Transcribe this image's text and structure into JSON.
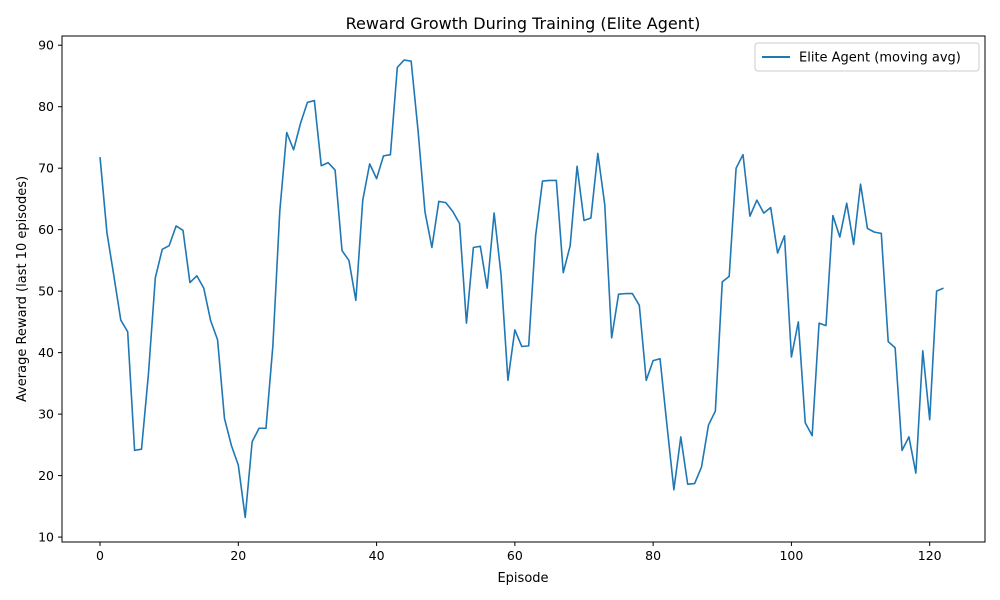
{
  "chart_data": {
    "type": "line",
    "title": "Reward Growth During Training (Elite Agent)",
    "xlabel": "Episode",
    "ylabel": "Average Reward (last 10 episodes)",
    "xlim": [
      -5.5,
      128
    ],
    "ylim": [
      9.2,
      91.5
    ],
    "xticks": [
      0,
      20,
      40,
      60,
      80,
      100,
      120
    ],
    "yticks": [
      10,
      20,
      30,
      40,
      50,
      60,
      70,
      80,
      90
    ],
    "grid": false,
    "legend_position": "top-right",
    "series": [
      {
        "name": "Elite Agent (moving avg)",
        "color": "#1f77b4",
        "x": [
          0,
          1,
          2,
          3,
          4,
          5,
          6,
          7,
          8,
          9,
          10,
          11,
          12,
          13,
          14,
          15,
          16,
          17,
          18,
          19,
          20,
          21,
          22,
          23,
          24,
          25,
          26,
          27,
          28,
          29,
          30,
          31,
          32,
          33,
          34,
          35,
          36,
          37,
          38,
          39,
          40,
          41,
          42,
          43,
          44,
          45,
          46,
          47,
          48,
          49,
          50,
          51,
          52,
          53,
          54,
          55,
          56,
          57,
          58,
          59,
          60,
          61,
          62,
          63,
          64,
          65,
          66,
          67,
          68,
          69,
          70,
          71,
          72,
          73,
          74,
          75,
          76,
          77,
          78,
          79,
          80,
          81,
          82,
          83,
          84,
          85,
          86,
          87,
          88,
          89,
          90,
          91,
          92,
          93,
          94,
          95,
          96,
          97,
          98,
          99,
          100,
          101,
          102,
          103,
          104,
          105,
          106,
          107,
          108,
          109,
          110,
          111,
          112,
          113,
          114,
          115,
          116,
          117,
          118,
          119,
          120,
          121,
          122
        ],
        "values": [
          71.8,
          59.5,
          52.5,
          45.3,
          43.4,
          24.1,
          24.3,
          36.5,
          52.2,
          56.8,
          57.4,
          60.6,
          59.9,
          51.4,
          52.5,
          50.5,
          45.2,
          42.1,
          29.3,
          24.9,
          21.7,
          13.2,
          25.5,
          27.7,
          27.7,
          41.1,
          63.0,
          75.8,
          73.0,
          77.3,
          80.7,
          81.0,
          70.4,
          70.9,
          69.7,
          56.6,
          55.0,
          48.5,
          64.8,
          70.7,
          68.3,
          72.0,
          72.2,
          86.4,
          87.6,
          87.4,
          76.1,
          62.9,
          57.1,
          64.6,
          64.4,
          63.0,
          61.0,
          44.8,
          57.1,
          57.3,
          50.5,
          62.7,
          52.7,
          35.5,
          43.7,
          41.0,
          41.1,
          59.0,
          67.9,
          68.0,
          68.0,
          53.0,
          57.4,
          70.3,
          61.5,
          61.9,
          72.4,
          64.1,
          42.4,
          49.5,
          49.6,
          49.6,
          47.7,
          35.5,
          38.7,
          39.0,
          28.2,
          17.7,
          26.3,
          18.6,
          18.7,
          21.4,
          28.2,
          30.5,
          51.5,
          52.4,
          70.0,
          72.2,
          62.2,
          64.8,
          62.7,
          63.6,
          56.2,
          59.0,
          39.3,
          45.0,
          28.6,
          26.5,
          44.8,
          44.4,
          62.3,
          58.8,
          64.3,
          57.6,
          67.4,
          60.2,
          59.6,
          59.4,
          41.8,
          40.8,
          24.1,
          26.3,
          20.4,
          40.3,
          29.1,
          50.0,
          50.5
        ]
      }
    ]
  }
}
